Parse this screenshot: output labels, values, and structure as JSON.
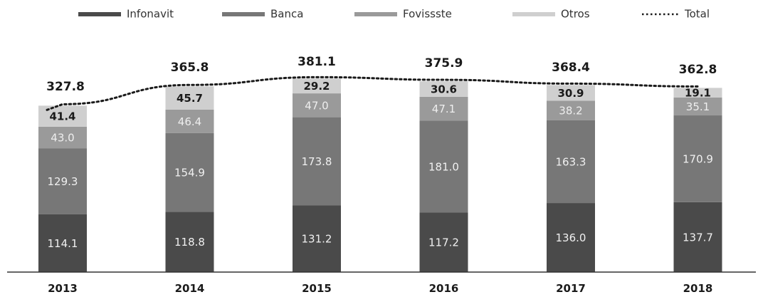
{
  "chart_data": {
    "type": "bar",
    "stacked": true,
    "categories": [
      "2013",
      "2014",
      "2015",
      "2016",
      "2017",
      "2018"
    ],
    "series": [
      {
        "name": "Infonavit",
        "color": "#4a4a4a",
        "values": [
          114.1,
          118.8,
          131.2,
          117.2,
          136.0,
          137.7
        ]
      },
      {
        "name": "Banca",
        "color": "#777777",
        "values": [
          129.3,
          154.9,
          173.8,
          181.0,
          163.3,
          170.9
        ]
      },
      {
        "name": "Fovissste",
        "color": "#9a9a9a",
        "values": [
          43.0,
          46.4,
          47.0,
          47.1,
          38.2,
          35.1
        ]
      },
      {
        "name": "Otros",
        "color": "#cfcfcf",
        "values": [
          41.4,
          45.7,
          29.2,
          30.6,
          30.9,
          19.1
        ]
      }
    ],
    "segment_labels": [
      [
        "114.1",
        "129.3",
        "43.0",
        "41.4"
      ],
      [
        "118.8",
        "154.9",
        "46.4",
        "45.7"
      ],
      [
        "131.2",
        "173.8",
        "47.0",
        "29.2"
      ],
      [
        "117.2",
        "181.0",
        "47.1",
        "30.6"
      ],
      [
        "136.0",
        "163.3",
        "38.2",
        "30.9"
      ],
      [
        "137.7",
        "170.9",
        "35.1",
        "19.1"
      ]
    ],
    "total": {
      "name": "Total",
      "values": [
        327.8,
        365.8,
        381.1,
        375.9,
        368.4,
        362.8
      ]
    },
    "total_labels": [
      "327.8",
      "365.8",
      "381.1",
      "375.9",
      "368.4",
      "362.8"
    ],
    "legend_position": "top",
    "ylim": [
      0,
      400
    ],
    "grid": false
  }
}
